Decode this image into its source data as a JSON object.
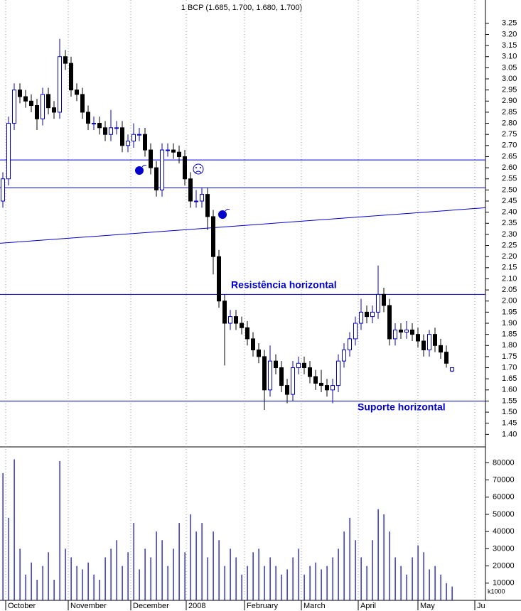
{
  "chart_data": {
    "type": "candlestick",
    "title": "1 BCP (1.685, 1.700, 1.680, 1.700)",
    "annotations": [
      "Resistência horizontal",
      "Suporte horizontal"
    ],
    "up_color": "#0000cc",
    "down_color": "#000000",
    "line_color": "#0000cc",
    "volume_color": "#0000cc",
    "grid": true,
    "xlim": [
      0,
      170.75
    ],
    "xticks": [
      {
        "value": 2,
        "label": "October"
      },
      {
        "value": 24,
        "label": "November"
      },
      {
        "value": 46,
        "label": "December"
      },
      {
        "value": 65.5,
        "label": "2008"
      },
      {
        "value": 86,
        "label": "February"
      },
      {
        "value": 106,
        "label": "March"
      },
      {
        "value": 126,
        "label": "April"
      },
      {
        "value": 147,
        "label": "May"
      },
      {
        "value": 167,
        "label": "Ju"
      }
    ],
    "ylim": [
      1.35,
      3.355
    ],
    "yticks": [
      3.25,
      {
        "value": 3.2,
        "label": "3.20"
      },
      3.15,
      {
        "value": 3.1,
        "label": "3.10"
      },
      3.05,
      {
        "value": 3,
        "label": "3.00"
      },
      2.95,
      {
        "value": 2.9,
        "label": "2.90"
      },
      2.85,
      {
        "value": 2.8,
        "label": "2.80"
      },
      2.75,
      {
        "value": 2.7,
        "label": "2.70"
      },
      2.65,
      {
        "value": 2.6,
        "label": "2.60"
      },
      2.55,
      {
        "value": 2.5,
        "label": "2.50"
      },
      2.45,
      {
        "value": 2.4,
        "label": "2.40"
      },
      2.35,
      {
        "value": 2.3,
        "label": "2.30"
      },
      2.25,
      {
        "value": 2.2,
        "label": "2.20"
      },
      2.15,
      {
        "value": 2.1,
        "label": "2.10"
      },
      2.05,
      {
        "value": 2,
        "label": "2.00"
      },
      1.95,
      {
        "value": 1.9,
        "label": "1.90"
      },
      1.85,
      {
        "value": 1.8,
        "label": "1.80"
      },
      1.75,
      {
        "value": 1.7,
        "label": "1.70"
      },
      1.65,
      {
        "value": 1.6,
        "label": "1.60"
      },
      1.55,
      {
        "value": 1.5,
        "label": "1.50"
      },
      1.45,
      {
        "value": 1.4,
        "label": "1.40"
      }
    ],
    "x": [
      1,
      3,
      5,
      7,
      9,
      11,
      13,
      15,
      17,
      19,
      21,
      23,
      25,
      27,
      29,
      31,
      33,
      35,
      37,
      39,
      41,
      43,
      45,
      47,
      49,
      51,
      53,
      55,
      57,
      59,
      61,
      63,
      65,
      67,
      69,
      71,
      73,
      75,
      77,
      79,
      81,
      83,
      85,
      87,
      89,
      91,
      93,
      95,
      97,
      99,
      101,
      103,
      105,
      107,
      109,
      111,
      113,
      115,
      117,
      119,
      121,
      123,
      125,
      127,
      129,
      131,
      133,
      135,
      137,
      139,
      141,
      143,
      145,
      147,
      149,
      151,
      153,
      155,
      157,
      159
    ],
    "open": [
      2.45,
      2.55,
      2.8,
      2.95,
      2.92,
      2.9,
      2.88,
      2.82,
      2.93,
      2.87,
      2.85,
      3.1,
      3.07,
      2.95,
      2.93,
      2.85,
      2.8,
      2.8,
      2.78,
      2.75,
      2.78,
      2.78,
      2.7,
      2.72,
      2.75,
      2.75,
      2.68,
      2.6,
      2.5,
      2.68,
      2.68,
      2.67,
      2.65,
      2.55,
      2.45,
      2.45,
      2.48,
      2.38,
      2.2,
      2.0,
      1.9,
      1.93,
      1.9,
      1.88,
      1.83,
      1.78,
      1.75,
      1.6,
      1.73,
      1.7,
      1.62,
      1.58,
      1.7,
      1.72,
      1.7,
      1.66,
      1.63,
      1.62,
      1.6,
      1.62,
      1.73,
      1.78,
      1.83,
      1.9,
      1.95,
      1.93,
      1.95,
      2.03,
      1.98,
      1.83,
      1.87,
      1.86,
      1.87,
      1.85,
      1.82,
      1.78,
      1.85,
      1.8,
      1.77,
      1.685
    ],
    "high": [
      2.58,
      2.83,
      2.98,
      2.98,
      2.95,
      2.93,
      2.91,
      2.96,
      2.96,
      2.9,
      3.18,
      3.13,
      3.1,
      2.98,
      2.96,
      2.88,
      2.83,
      2.83,
      2.81,
      2.86,
      2.81,
      2.81,
      2.75,
      2.8,
      2.78,
      2.78,
      2.71,
      2.63,
      2.71,
      2.71,
      2.71,
      2.7,
      2.68,
      2.58,
      2.5,
      2.51,
      2.51,
      2.41,
      2.23,
      2.03,
      1.96,
      1.96,
      1.93,
      1.91,
      1.86,
      1.81,
      1.78,
      1.8,
      1.76,
      1.73,
      1.65,
      1.73,
      1.75,
      1.75,
      1.73,
      1.69,
      1.69,
      1.65,
      1.65,
      1.76,
      1.81,
      1.86,
      1.93,
      2.01,
      1.98,
      1.98,
      2.16,
      2.06,
      2.01,
      1.9,
      1.9,
      1.91,
      1.9,
      1.88,
      1.85,
      1.87,
      1.88,
      1.83,
      1.8,
      1.7
    ],
    "low": [
      2.42,
      2.52,
      2.77,
      2.89,
      2.87,
      2.85,
      2.77,
      2.79,
      2.84,
      2.82,
      2.82,
      3.04,
      2.92,
      2.9,
      2.82,
      2.77,
      2.77,
      2.75,
      2.72,
      2.72,
      2.75,
      2.67,
      2.67,
      2.69,
      2.72,
      2.65,
      2.57,
      2.47,
      2.47,
      2.65,
      2.64,
      2.62,
      2.52,
      2.42,
      2.42,
      2.42,
      2.32,
      2.12,
      1.97,
      1.71,
      1.87,
      1.87,
      1.85,
      1.8,
      1.75,
      1.72,
      1.51,
      1.57,
      1.67,
      1.59,
      1.54,
      1.55,
      1.67,
      1.67,
      1.63,
      1.6,
      1.59,
      1.57,
      1.54,
      1.59,
      1.7,
      1.75,
      1.8,
      1.87,
      1.9,
      1.9,
      1.92,
      1.95,
      1.8,
      1.8,
      1.83,
      1.83,
      1.82,
      1.79,
      1.75,
      1.75,
      1.77,
      1.74,
      1.7,
      1.68
    ],
    "close": [
      2.55,
      2.8,
      2.95,
      2.92,
      2.9,
      2.88,
      2.82,
      2.93,
      2.87,
      2.85,
      3.1,
      3.07,
      2.95,
      2.93,
      2.85,
      2.8,
      2.8,
      2.78,
      2.75,
      2.78,
      2.78,
      2.7,
      2.72,
      2.75,
      2.75,
      2.68,
      2.6,
      2.5,
      2.68,
      2.68,
      2.67,
      2.65,
      2.55,
      2.45,
      2.45,
      2.48,
      2.38,
      2.2,
      2.0,
      1.9,
      1.93,
      1.9,
      1.88,
      1.83,
      1.78,
      1.75,
      1.6,
      1.73,
      1.7,
      1.62,
      1.58,
      1.7,
      1.72,
      1.7,
      1.66,
      1.63,
      1.62,
      1.6,
      1.62,
      1.73,
      1.78,
      1.83,
      1.9,
      1.95,
      1.93,
      1.95,
      2.03,
      1.98,
      1.83,
      1.87,
      1.86,
      1.87,
      1.85,
      1.82,
      1.78,
      1.85,
      1.8,
      1.77,
      1.72,
      1.7
    ],
    "lines": [
      {
        "y": [
          2.635,
          2.635
        ]
      },
      {
        "y": [
          2.51,
          2.51
        ]
      },
      {
        "y": [
          2.26,
          2.42
        ]
      },
      {
        "y": [
          2.03,
          2.03
        ]
      },
      {
        "y": [
          1.55,
          1.55
        ]
      }
    ],
    "volume": {
      "unit": "k1000",
      "ylim": [
        0,
        88000
      ],
      "yticks": [
        10000,
        20000,
        30000,
        40000,
        50000,
        60000,
        70000,
        80000
      ],
      "values": [
        74000,
        48000,
        82000,
        30000,
        15000,
        22000,
        12000,
        20000,
        28000,
        12000,
        81000,
        30000,
        25000,
        20000,
        18000,
        22000,
        15000,
        12000,
        25000,
        30000,
        35000,
        20000,
        28000,
        45000,
        18000,
        30000,
        25000,
        40000,
        35000,
        20000,
        30000,
        45000,
        28000,
        50000,
        40000,
        45000,
        25000,
        40000,
        35000,
        20000,
        30000,
        25000,
        15000,
        20000,
        28000,
        30000,
        20000,
        25000,
        20000,
        15000,
        18000,
        25000,
        30000,
        15000,
        20000,
        22000,
        18000,
        20000,
        25000,
        30000,
        40000,
        48000,
        35000,
        25000,
        20000,
        35000,
        53000,
        50000,
        40000,
        25000,
        20000,
        15000,
        25000,
        32000,
        28000,
        18000,
        20000,
        15000,
        10000,
        8000
      ]
    }
  }
}
